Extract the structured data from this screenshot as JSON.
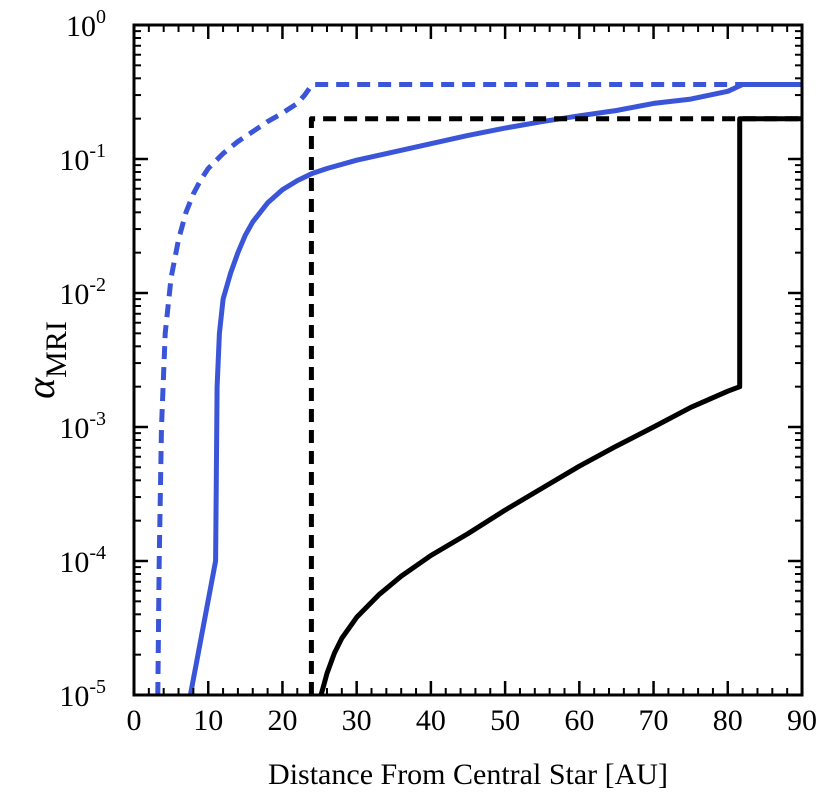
{
  "chart_data": {
    "type": "line",
    "xlabel": "Distance From Central Star [AU]",
    "ylabel": "α",
    "ylabel_subscript": "MRI",
    "xlim": [
      0,
      90
    ],
    "ylim": [
      1e-05,
      1
    ],
    "yscale": "log",
    "x_ticks": [
      0,
      10,
      20,
      30,
      40,
      50,
      60,
      70,
      80,
      90
    ],
    "x_tick_labels": [
      "0",
      "10",
      "20",
      "30",
      "40",
      "50",
      "60",
      "70",
      "80",
      "90"
    ],
    "y_ticks": [
      {
        "value": 1e-05,
        "base": "10",
        "exp": "-5"
      },
      {
        "value": 0.0001,
        "base": "10",
        "exp": "-4"
      },
      {
        "value": 0.001,
        "base": "10",
        "exp": "-3"
      },
      {
        "value": 0.01,
        "base": "10",
        "exp": "-2"
      },
      {
        "value": 0.1,
        "base": "10",
        "exp": "-1"
      },
      {
        "value": 1,
        "base": "10",
        "exp": "0"
      }
    ],
    "grid": false,
    "series": [
      {
        "color": "#3a55d8",
        "style": "dashed",
        "points": [
          [
            3.2,
            1e-05
          ],
          [
            3.4,
            0.0001
          ],
          [
            3.7,
            0.001
          ],
          [
            4.2,
            0.005
          ],
          [
            5,
            0.013
          ],
          [
            6,
            0.025
          ],
          [
            7,
            0.04
          ],
          [
            8,
            0.055
          ],
          [
            9,
            0.07
          ],
          [
            10,
            0.085
          ],
          [
            12,
            0.11
          ],
          [
            14,
            0.135
          ],
          [
            16,
            0.16
          ],
          [
            18,
            0.19
          ],
          [
            20,
            0.22
          ],
          [
            22,
            0.26
          ],
          [
            23,
            0.3
          ],
          [
            24,
            0.36
          ],
          [
            90,
            0.36
          ]
        ]
      },
      {
        "color": "#3a55d8",
        "style": "solid",
        "points": [
          [
            7.6,
            1e-05
          ],
          [
            11,
            0.0001
          ],
          [
            11.2,
            0.002
          ],
          [
            11.5,
            0.005
          ],
          [
            12,
            0.009
          ],
          [
            13,
            0.014
          ],
          [
            14,
            0.02
          ],
          [
            15,
            0.027
          ],
          [
            16,
            0.034
          ],
          [
            18,
            0.047
          ],
          [
            20,
            0.059
          ],
          [
            22,
            0.069
          ],
          [
            24,
            0.078
          ],
          [
            26,
            0.085
          ],
          [
            30,
            0.098
          ],
          [
            35,
            0.113
          ],
          [
            40,
            0.13
          ],
          [
            45,
            0.15
          ],
          [
            50,
            0.17
          ],
          [
            55,
            0.19
          ],
          [
            60,
            0.21
          ],
          [
            65,
            0.23
          ],
          [
            70,
            0.26
          ],
          [
            75,
            0.28
          ],
          [
            80,
            0.32
          ],
          [
            82,
            0.36
          ],
          [
            90,
            0.36
          ]
        ]
      },
      {
        "color": "#000000",
        "style": "dashed",
        "points": [
          [
            23.9,
            1e-05
          ],
          [
            23.9,
            0.2
          ],
          [
            90,
            0.2
          ]
        ]
      },
      {
        "color": "#000000",
        "style": "solid",
        "points": [
          [
            25.2,
            1e-05
          ],
          [
            25.5,
            1.15e-05
          ],
          [
            26,
            1.45e-05
          ],
          [
            27,
            2.05e-05
          ],
          [
            28,
            2.65e-05
          ],
          [
            30,
            3.8e-05
          ],
          [
            33,
            5.6e-05
          ],
          [
            36,
            7.7e-05
          ],
          [
            40,
            0.00011
          ],
          [
            45,
            0.00016
          ],
          [
            50,
            0.00024
          ],
          [
            55,
            0.00035
          ],
          [
            60,
            0.00051
          ],
          [
            65,
            0.00072
          ],
          [
            70,
            0.001
          ],
          [
            75,
            0.0014
          ],
          [
            80,
            0.00185
          ],
          [
            81.6,
            0.002
          ],
          [
            81.6,
            0.2
          ],
          [
            90,
            0.2
          ]
        ]
      }
    ]
  }
}
